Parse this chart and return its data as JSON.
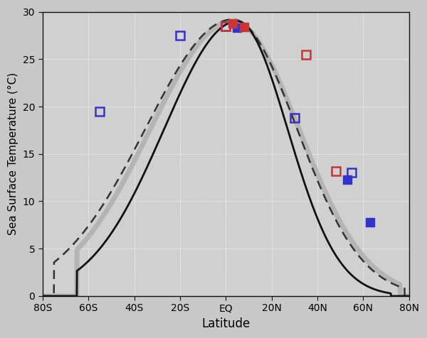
{
  "title": "",
  "xlabel": "Latitude",
  "ylabel": "Sea Surface Temperature (°C)",
  "xlim": [
    -80,
    80
  ],
  "ylim": [
    0,
    30
  ],
  "xtick_labels": [
    "80S",
    "60S",
    "40S",
    "20S",
    "EQ",
    "20N",
    "40N",
    "60N",
    "80N"
  ],
  "xtick_values": [
    -80,
    -60,
    -40,
    -20,
    0,
    20,
    40,
    60,
    80
  ],
  "ytick_values": [
    0,
    5,
    10,
    15,
    20,
    25,
    30
  ],
  "background_color": "#d8d8d8",
  "plot_bg_color": "#d4d4d4",
  "grid_color": "#ffffff",
  "solid_line_color": "#111111",
  "dashed_line_color": "#333333",
  "gray_line_color": "#b0b0b0",
  "markers": {
    "blue_open_lats": [
      -55,
      -20,
      0,
      30,
      55
    ],
    "blue_open_vals": [
      19.5,
      27.5,
      28.5,
      18.8,
      13.0
    ],
    "red_open_lats": [
      0,
      35,
      48
    ],
    "red_open_vals": [
      28.5,
      25.5,
      13.2
    ],
    "blue_filled_lats": [
      5,
      53,
      63
    ],
    "blue_filled_vals": [
      28.3,
      12.3,
      7.8
    ],
    "red_filled_lats": [
      3,
      8
    ],
    "red_filled_vals": [
      28.8,
      28.4
    ]
  },
  "line_lw_solid": 2.0,
  "line_lw_dashed": 1.8,
  "line_lw_gray": 5.0,
  "marker_size": 9
}
